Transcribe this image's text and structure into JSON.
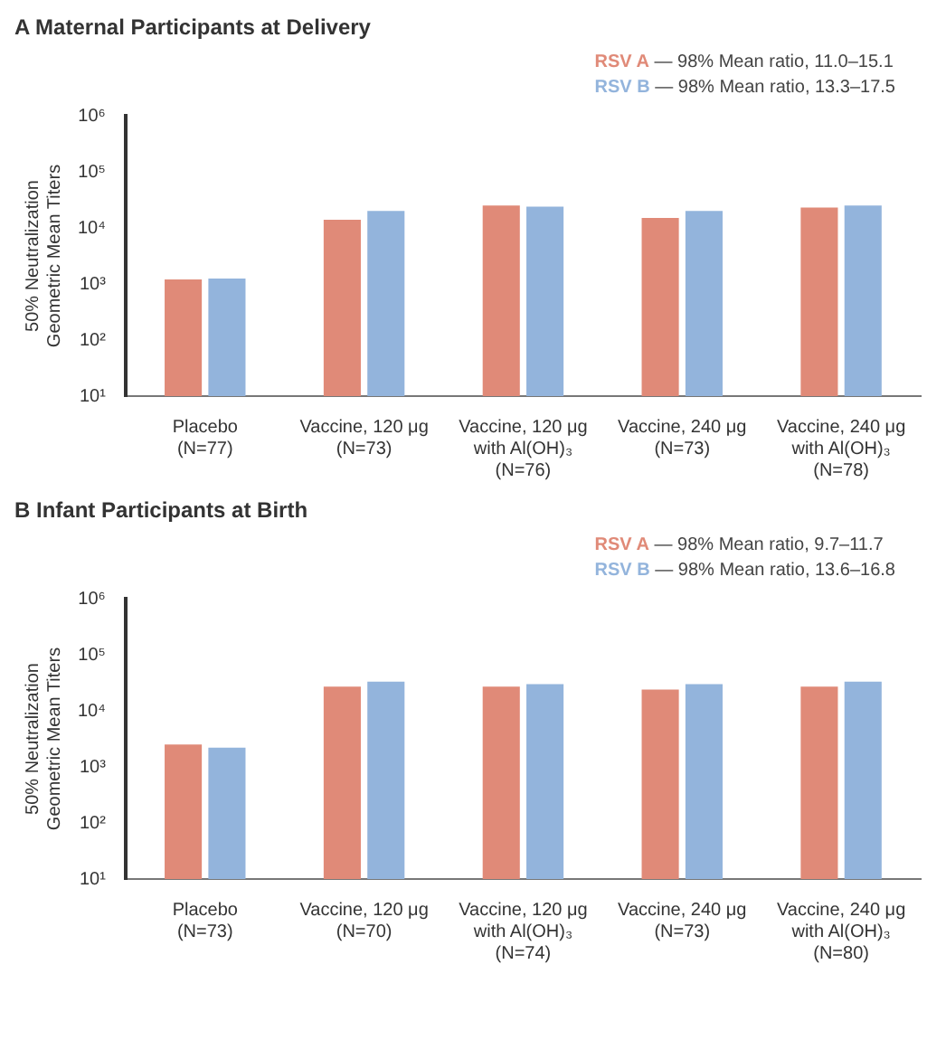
{
  "chart_data": [
    {
      "type": "bar",
      "title": "A  Maternal Participants at Delivery",
      "ylabel": "50% Neutralization\nGeometric Mean Titers",
      "categories": [
        "Placebo\n(N=77)",
        "Vaccine, 120 μg\n(N=73)",
        "Vaccine, 120 μg\nwith Al(OH)₃\n(N=76)",
        "Vaccine, 240 μg\n(N=73)",
        "Vaccine, 240 μg\nwith Al(OH)₃\n(N=78)"
      ],
      "series": [
        {
          "name": "RSV A",
          "color": "#e08a78",
          "values": [
            1200,
            14000,
            25000,
            15000,
            23000
          ]
        },
        {
          "name": "RSV B",
          "color": "#93b4dc",
          "values": [
            1250,
            20000,
            24000,
            20000,
            25000
          ]
        }
      ],
      "annotations": [
        "— 98% Mean ratio, 11.0–15.1",
        "— 98% Mean ratio, 13.3–17.5"
      ],
      "log": "y",
      "ylim": [
        10,
        1000000
      ],
      "yticks": [
        {
          "value": 10,
          "label": "10¹"
        },
        {
          "value": 100,
          "label": "10²"
        },
        {
          "value": 1000,
          "label": "10³"
        },
        {
          "value": 10000,
          "label": "10⁴"
        },
        {
          "value": 100000,
          "label": "10⁵"
        },
        {
          "value": 1000000,
          "label": "10⁶"
        }
      ],
      "legend": "top right"
    },
    {
      "type": "bar",
      "title": "B  Infant Participants at Birth",
      "ylabel": "50% Neutralization\nGeometric Mean Titers",
      "categories": [
        "Placebo\n(N=73)",
        "Vaccine, 120 μg\n(N=70)",
        "Vaccine, 120 μg\nwith Al(OH)₃\n(N=74)",
        "Vaccine, 240 μg\n(N=73)",
        "Vaccine, 240 μg\nwith Al(OH)₃\n(N=80)"
      ],
      "series": [
        {
          "name": "RSV A",
          "color": "#e08a78",
          "values": [
            2500,
            27000,
            27000,
            24000,
            27000
          ]
        },
        {
          "name": "RSV B",
          "color": "#93b4dc",
          "values": [
            2200,
            33000,
            30000,
            30000,
            33000
          ]
        }
      ],
      "annotations": [
        "— 98% Mean ratio, 9.7–11.7",
        "— 98% Mean ratio, 13.6–16.8"
      ],
      "log": "y",
      "ylim": [
        10,
        1000000
      ],
      "yticks": [
        {
          "value": 10,
          "label": "10¹"
        },
        {
          "value": 100,
          "label": "10²"
        },
        {
          "value": 1000,
          "label": "10³"
        },
        {
          "value": 10000,
          "label": "10⁴"
        },
        {
          "value": 100000,
          "label": "10⁵"
        },
        {
          "value": 1000000,
          "label": "10⁶"
        }
      ],
      "legend": "top right"
    }
  ]
}
